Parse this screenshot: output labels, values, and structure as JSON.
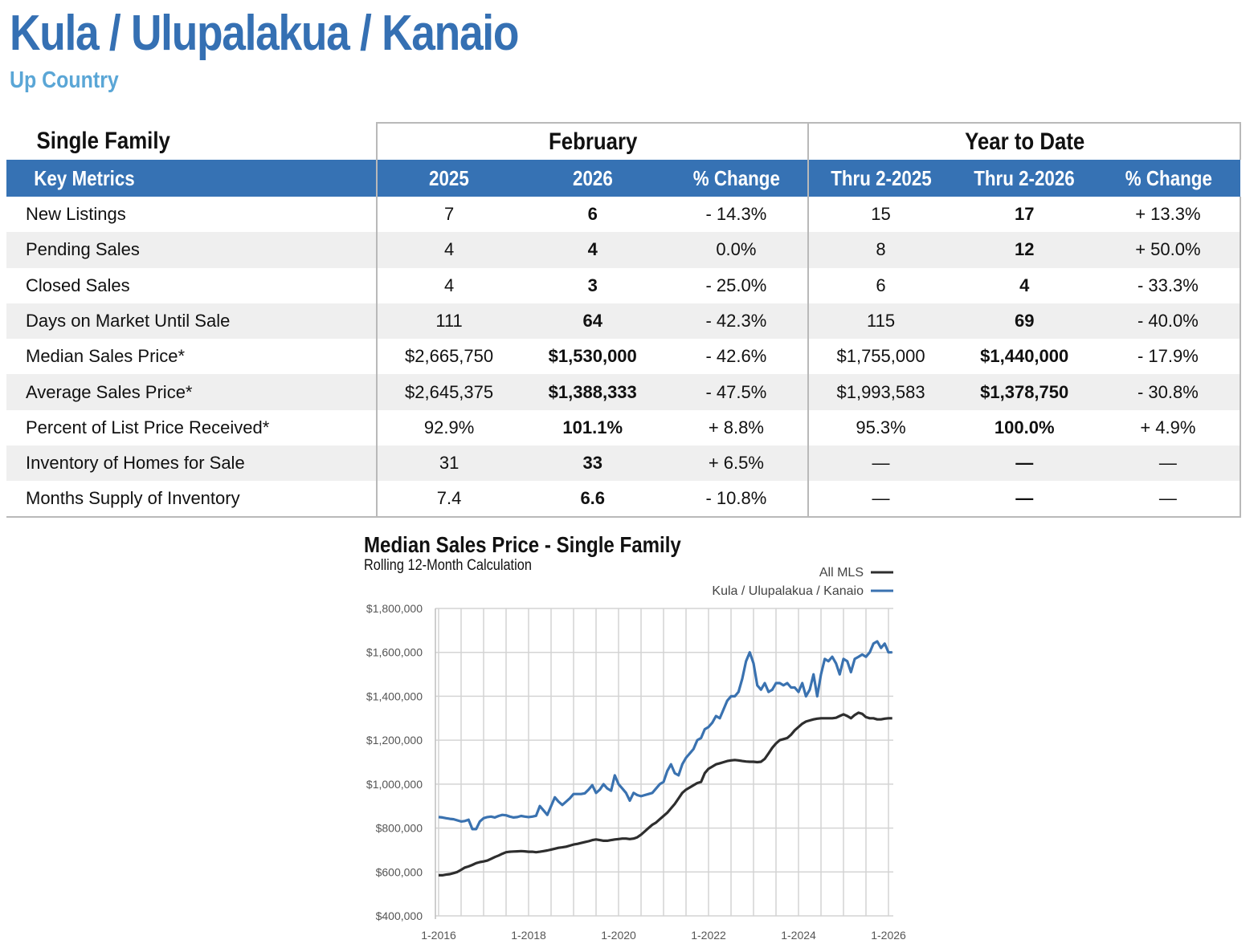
{
  "header": {
    "title": "Kula / Ulupalakua / Kanaio",
    "subtitle": "Up Country"
  },
  "table": {
    "section_label": "Single Family",
    "group_month": "February",
    "group_ytd": "Year to Date",
    "columns": [
      "Key Metrics",
      "2025",
      "2026",
      "% Change",
      "Thru 2-2025",
      "Thru 2-2026",
      "% Change"
    ],
    "rows": [
      {
        "metric": "New Listings",
        "m2025": "7",
        "m2026": "6",
        "mchg": "- 14.3%",
        "y2025": "15",
        "y2026": "17",
        "ychg": "+ 13.3%"
      },
      {
        "metric": "Pending Sales",
        "m2025": "4",
        "m2026": "4",
        "mchg": "0.0%",
        "y2025": "8",
        "y2026": "12",
        "ychg": "+ 50.0%"
      },
      {
        "metric": "Closed Sales",
        "m2025": "4",
        "m2026": "3",
        "mchg": "- 25.0%",
        "y2025": "6",
        "y2026": "4",
        "ychg": "- 33.3%"
      },
      {
        "metric": "Days on Market Until Sale",
        "m2025": "111",
        "m2026": "64",
        "mchg": "- 42.3%",
        "y2025": "115",
        "y2026": "69",
        "ychg": "- 40.0%"
      },
      {
        "metric": "Median Sales Price*",
        "m2025": "$2,665,750",
        "m2026": "$1,530,000",
        "mchg": "- 42.6%",
        "y2025": "$1,755,000",
        "y2026": "$1,440,000",
        "ychg": "- 17.9%"
      },
      {
        "metric": "Average Sales Price*",
        "m2025": "$2,645,375",
        "m2026": "$1,388,333",
        "mchg": "- 47.5%",
        "y2025": "$1,993,583",
        "y2026": "$1,378,750",
        "ychg": "- 30.8%"
      },
      {
        "metric": "Percent of List Price Received*",
        "m2025": "92.9%",
        "m2026": "101.1%",
        "mchg": "+ 8.8%",
        "y2025": "95.3%",
        "y2026": "100.0%",
        "ychg": "+ 4.9%"
      },
      {
        "metric": "Inventory of Homes for Sale",
        "m2025": "31",
        "m2026": "33",
        "mchg": "+ 6.5%",
        "y2025": "—",
        "y2026": "—",
        "ychg": "—"
      },
      {
        "metric": "Months Supply of Inventory",
        "m2025": "7.4",
        "m2026": "6.6",
        "mchg": "- 10.8%",
        "y2025": "—",
        "y2026": "—",
        "ychg": "—"
      }
    ]
  },
  "colors": {
    "brand_blue": "#3570b3",
    "light_blue": "#5aa6d6",
    "all_mls": "#2e2e2e",
    "area_line": "#3a72b0"
  },
  "chart_data": {
    "type": "line",
    "title": "Median Sales Price - Single Family",
    "subtitle": "Rolling 12-Month Calculation",
    "xlabel": "",
    "ylabel": "",
    "x_start": "1-2016",
    "x_end": "2-2026",
    "x_ticks": [
      "1-2016",
      "1-2018",
      "1-2020",
      "1-2022",
      "1-2024",
      "1-2026"
    ],
    "y_ticks": [
      "$400,000",
      "$600,000",
      "$800,000",
      "$1,000,000",
      "$1,200,000",
      "$1,400,000",
      "$1,600,000",
      "$1,800,000"
    ],
    "ylim": [
      400000,
      1800000
    ],
    "grid": true,
    "legend_position": "top-right",
    "series": [
      {
        "name": "All MLS",
        "color": "#2e2e2e",
        "values": [
          585000,
          585000,
          588000,
          590000,
          595000,
          600000,
          610000,
          620000,
          625000,
          632000,
          640000,
          645000,
          648000,
          652000,
          660000,
          668000,
          675000,
          683000,
          690000,
          692000,
          693000,
          694000,
          695000,
          694000,
          692000,
          692000,
          690000,
          692000,
          695000,
          698000,
          702000,
          706000,
          710000,
          712000,
          715000,
          720000,
          725000,
          728000,
          732000,
          736000,
          740000,
          745000,
          748000,
          745000,
          742000,
          742000,
          745000,
          748000,
          750000,
          752000,
          752000,
          750000,
          752000,
          758000,
          770000,
          785000,
          800000,
          815000,
          825000,
          840000,
          855000,
          870000,
          890000,
          910000,
          935000,
          960000,
          975000,
          985000,
          995000,
          1005000,
          1010000,
          1050000,
          1070000,
          1080000,
          1090000,
          1095000,
          1100000,
          1105000,
          1108000,
          1110000,
          1108000,
          1105000,
          1103000,
          1102000,
          1102000,
          1100000,
          1102000,
          1115000,
          1140000,
          1165000,
          1185000,
          1200000,
          1205000,
          1210000,
          1225000,
          1245000,
          1260000,
          1275000,
          1285000,
          1290000,
          1295000,
          1298000,
          1300000,
          1300000,
          1300000,
          1300000,
          1302000,
          1310000,
          1318000,
          1310000,
          1300000,
          1315000,
          1325000,
          1320000,
          1305000,
          1300000,
          1300000,
          1295000,
          1295000,
          1298000,
          1300000,
          1300000
        ]
      },
      {
        "name": "Kula / Ulupalakua / Kanaio",
        "color": "#3a72b0",
        "values": [
          850000,
          848000,
          845000,
          842000,
          840000,
          835000,
          830000,
          832000,
          838000,
          795000,
          795000,
          830000,
          845000,
          850000,
          852000,
          848000,
          855000,
          860000,
          858000,
          852000,
          848000,
          850000,
          855000,
          852000,
          850000,
          852000,
          856000,
          900000,
          880000,
          860000,
          900000,
          940000,
          920000,
          905000,
          920000,
          935000,
          955000,
          955000,
          955000,
          958000,
          975000,
          995000,
          960000,
          975000,
          1000000,
          980000,
          970000,
          1040000,
          1000000,
          980000,
          960000,
          925000,
          960000,
          950000,
          945000,
          950000,
          955000,
          960000,
          980000,
          1000000,
          1010000,
          1060000,
          1090000,
          1050000,
          1040000,
          1090000,
          1120000,
          1140000,
          1160000,
          1200000,
          1210000,
          1250000,
          1260000,
          1280000,
          1310000,
          1300000,
          1340000,
          1380000,
          1400000,
          1400000,
          1420000,
          1480000,
          1560000,
          1600000,
          1550000,
          1450000,
          1430000,
          1460000,
          1420000,
          1430000,
          1460000,
          1460000,
          1450000,
          1460000,
          1440000,
          1440000,
          1420000,
          1460000,
          1400000,
          1430000,
          1500000,
          1400000,
          1500000,
          1570000,
          1560000,
          1580000,
          1550000,
          1500000,
          1570000,
          1560000,
          1510000,
          1570000,
          1580000,
          1590000,
          1580000,
          1600000,
          1640000,
          1650000,
          1620000,
          1640000,
          1600000,
          1600000
        ]
      }
    ]
  }
}
